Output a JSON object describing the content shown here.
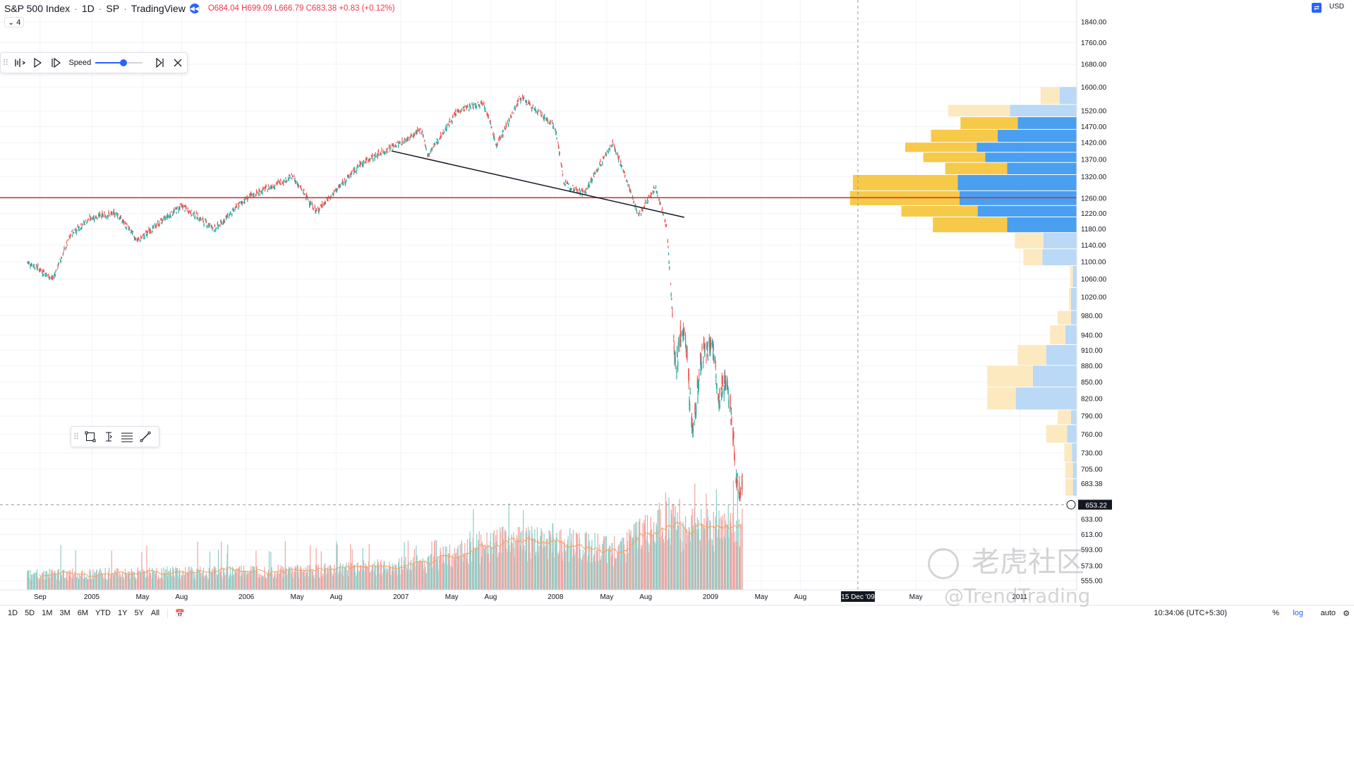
{
  "header": {
    "symbol": "S&P 500 Index",
    "interval": "1D",
    "exchange": "SP",
    "source": "TradingView",
    "ohlc": {
      "o": "O684.04",
      "h": "H699.09",
      "l": "L666.79",
      "c": "C683.38",
      "chg": "+0.83 (+0.12%)"
    },
    "collapse_label": "⌄ 4"
  },
  "replay_toolbar": {
    "speed_label": "Speed"
  },
  "currency": "USD",
  "bottom_bar": {
    "ranges": [
      "1D",
      "5D",
      "1M",
      "3M",
      "6M",
      "YTD",
      "1Y",
      "5Y",
      "All"
    ],
    "clock": "10:34:06 (UTC+5:30)",
    "pct": "%",
    "log": "log",
    "auto": "auto"
  },
  "watermark": {
    "line1": "老虎社区",
    "line2": "@TrendTrading"
  },
  "colors": {
    "up": "#26a69a",
    "down": "#ef5350",
    "hline": "#d32f2f",
    "trend": "#131722",
    "vol_up": "#8ccfc7",
    "vol_down": "#f5a3a1",
    "ma": "#f4a460",
    "vp_up": "#f7c948",
    "vp_down": "#4a9ff0",
    "vp_up_light": "#fde9c0",
    "vp_down_light": "#b9d9f6",
    "crosshair_label": "#131722"
  },
  "chart_data": {
    "type": "candlestick",
    "symbol": "S&P 500 Index",
    "scale": "log",
    "y_ticks": [
      1840,
      1760,
      1680,
      1600,
      1520,
      1470,
      1420,
      1370,
      1320,
      1260,
      1220,
      1180,
      1140,
      1100,
      1060,
      1020,
      980,
      940,
      910,
      880,
      850,
      820,
      790,
      760,
      730,
      705,
      683.38,
      653.22,
      633,
      613,
      593,
      573,
      555
    ],
    "y_tick_labels": [
      "1840.00",
      "1760.00",
      "1680.00",
      "1600.00",
      "1520.00",
      "1470.00",
      "1420.00",
      "1370.00",
      "1320.00",
      "1260.00",
      "1220.00",
      "1180.00",
      "1140.00",
      "1100.00",
      "1060.00",
      "1020.00",
      "980.00",
      "940.00",
      "910.00",
      "880.00",
      "850.00",
      "820.00",
      "790.00",
      "760.00",
      "730.00",
      "705.00",
      "683.38",
      "653.22",
      "633.00",
      "613.00",
      "593.00",
      "573.00",
      "555.00"
    ],
    "last_price": 683.38,
    "crosshair_price": 653.22,
    "crosshair_date": "15 Dec '09",
    "x_ticks": [
      {
        "label": "Sep",
        "date": "2004-09-01"
      },
      {
        "label": "2005",
        "date": "2005-01-01"
      },
      {
        "label": "May",
        "date": "2005-05-01"
      },
      {
        "label": "Aug",
        "date": "2005-08-01"
      },
      {
        "label": "2006",
        "date": "2006-01-01"
      },
      {
        "label": "May",
        "date": "2006-05-01"
      },
      {
        "label": "Aug",
        "date": "2006-08-01"
      },
      {
        "label": "2007",
        "date": "2007-01-01"
      },
      {
        "label": "May",
        "date": "2007-05-01"
      },
      {
        "label": "Aug",
        "date": "2007-08-01"
      },
      {
        "label": "2008",
        "date": "2008-01-01"
      },
      {
        "label": "May",
        "date": "2008-05-01"
      },
      {
        "label": "Aug",
        "date": "2008-08-01"
      },
      {
        "label": "2009",
        "date": "2009-01-01"
      },
      {
        "label": "May",
        "date": "2009-05-01"
      },
      {
        "label": "Aug",
        "date": "2009-08-01"
      },
      {
        "label": "May",
        "date": "2010-05-01"
      },
      {
        "label": "2011",
        "date": "2011-01-01"
      }
    ],
    "price_path": [
      {
        "date": "2004-08-01",
        "close": 1100
      },
      {
        "date": "2004-08-20",
        "close": 1090
      },
      {
        "date": "2004-10-01",
        "close": 1060
      },
      {
        "date": "2004-11-15",
        "close": 1170
      },
      {
        "date": "2005-01-01",
        "close": 1210
      },
      {
        "date": "2005-03-01",
        "close": 1220
      },
      {
        "date": "2005-04-20",
        "close": 1150
      },
      {
        "date": "2005-06-15",
        "close": 1200
      },
      {
        "date": "2005-08-01",
        "close": 1240
      },
      {
        "date": "2005-10-20",
        "close": 1180
      },
      {
        "date": "2005-12-31",
        "close": 1260
      },
      {
        "date": "2006-04-20",
        "close": 1320
      },
      {
        "date": "2006-06-15",
        "close": 1225
      },
      {
        "date": "2006-07-15",
        "close": 1260
      },
      {
        "date": "2006-10-01",
        "close": 1360
      },
      {
        "date": "2007-01-15",
        "close": 1430
      },
      {
        "date": "2007-02-20",
        "close": 1460
      },
      {
        "date": "2007-03-05",
        "close": 1380
      },
      {
        "date": "2007-05-15",
        "close": 1520
      },
      {
        "date": "2007-07-15",
        "close": 1550
      },
      {
        "date": "2007-08-15",
        "close": 1410
      },
      {
        "date": "2007-10-10",
        "close": 1565
      },
      {
        "date": "2007-12-31",
        "close": 1470
      },
      {
        "date": "2008-01-22",
        "close": 1300
      },
      {
        "date": "2008-03-10",
        "close": 1275
      },
      {
        "date": "2008-05-15",
        "close": 1420
      },
      {
        "date": "2008-07-15",
        "close": 1215
      },
      {
        "date": "2008-08-25",
        "close": 1290
      },
      {
        "date": "2008-09-20",
        "close": 1180
      },
      {
        "date": "2008-10-10",
        "close": 880
      },
      {
        "date": "2008-10-30",
        "close": 960
      },
      {
        "date": "2008-11-20",
        "close": 760
      },
      {
        "date": "2008-12-10",
        "close": 890
      },
      {
        "date": "2009-01-05",
        "close": 930
      },
      {
        "date": "2009-01-20",
        "close": 810
      },
      {
        "date": "2009-02-10",
        "close": 860
      },
      {
        "date": "2009-03-02",
        "close": 700
      },
      {
        "date": "2009-03-09",
        "close": 676
      },
      {
        "date": "2009-03-17",
        "close": 683.38
      }
    ],
    "horizontal_line": {
      "price": 1262,
      "color": "red"
    },
    "trend_line": {
      "from": {
        "date": "2006-12-10",
        "price": 1395
      },
      "to": {
        "date": "2008-10-31",
        "price": 1210
      }
    },
    "volume_profile": {
      "rows": [
        {
          "low": 1540,
          "high": 1600,
          "up": 20,
          "down": 18,
          "faded": true
        },
        {
          "low": 1500,
          "high": 1540,
          "up": 65,
          "down": 70,
          "faded": true
        },
        {
          "low": 1460,
          "high": 1500,
          "up": 60,
          "down": 62,
          "faded": false
        },
        {
          "low": 1420,
          "high": 1460,
          "up": 70,
          "down": 83,
          "faded": false
        },
        {
          "low": 1390,
          "high": 1420,
          "up": 75,
          "down": 105,
          "faded": false
        },
        {
          "low": 1360,
          "high": 1390,
          "up": 65,
          "down": 96,
          "faded": false
        },
        {
          "low": 1325,
          "high": 1360,
          "up": 65,
          "down": 73,
          "faded": false
        },
        {
          "low": 1280,
          "high": 1325,
          "up": 110,
          "down": 125,
          "faded": false
        },
        {
          "low": 1240,
          "high": 1280,
          "up": 115,
          "down": 123,
          "faded": false
        },
        {
          "low": 1210,
          "high": 1240,
          "up": 80,
          "down": 104,
          "faded": false
        },
        {
          "low": 1170,
          "high": 1210,
          "up": 78,
          "down": 73,
          "faded": false
        },
        {
          "low": 1130,
          "high": 1170,
          "up": 30,
          "down": 35,
          "faded": true
        },
        {
          "low": 1090,
          "high": 1130,
          "up": 20,
          "down": 36,
          "faded": true
        },
        {
          "low": 1040,
          "high": 1090,
          "up": 3,
          "down": 4,
          "faded": true
        },
        {
          "low": 990,
          "high": 1040,
          "up": 2,
          "down": 6,
          "faded": true
        },
        {
          "low": 960,
          "high": 990,
          "up": 14,
          "down": 6,
          "faded": true
        },
        {
          "low": 920,
          "high": 960,
          "up": 16,
          "down": 12,
          "faded": true
        },
        {
          "low": 880,
          "high": 920,
          "up": 30,
          "down": 32,
          "faded": true
        },
        {
          "low": 840,
          "high": 880,
          "up": 48,
          "down": 46,
          "faded": true
        },
        {
          "low": 800,
          "high": 840,
          "up": 30,
          "down": 64,
          "faded": true
        },
        {
          "low": 775,
          "high": 800,
          "up": 14,
          "down": 6,
          "faded": true
        },
        {
          "low": 745,
          "high": 775,
          "up": 22,
          "down": 10,
          "faded": true
        },
        {
          "low": 715,
          "high": 745,
          "up": 8,
          "down": 5,
          "faded": true
        },
        {
          "low": 690,
          "high": 715,
          "up": 8,
          "down": 4,
          "faded": true
        },
        {
          "low": 665,
          "high": 690,
          "up": 8,
          "down": 4,
          "faded": true
        }
      ]
    },
    "volume": {
      "ma_period": 20,
      "regime": [
        {
          "date": "2004-08-01",
          "level": 0.18
        },
        {
          "date": "2006-06-01",
          "level": 0.22
        },
        {
          "date": "2007-02-15",
          "level": 0.3
        },
        {
          "date": "2007-08-01",
          "level": 0.55
        },
        {
          "date": "2008-01-20",
          "level": 0.55
        },
        {
          "date": "2008-06-01",
          "level": 0.45
        },
        {
          "date": "2008-09-15",
          "level": 0.85
        },
        {
          "date": "2008-11-01",
          "level": 0.7
        },
        {
          "date": "2009-03-17",
          "level": 0.75
        }
      ]
    }
  }
}
